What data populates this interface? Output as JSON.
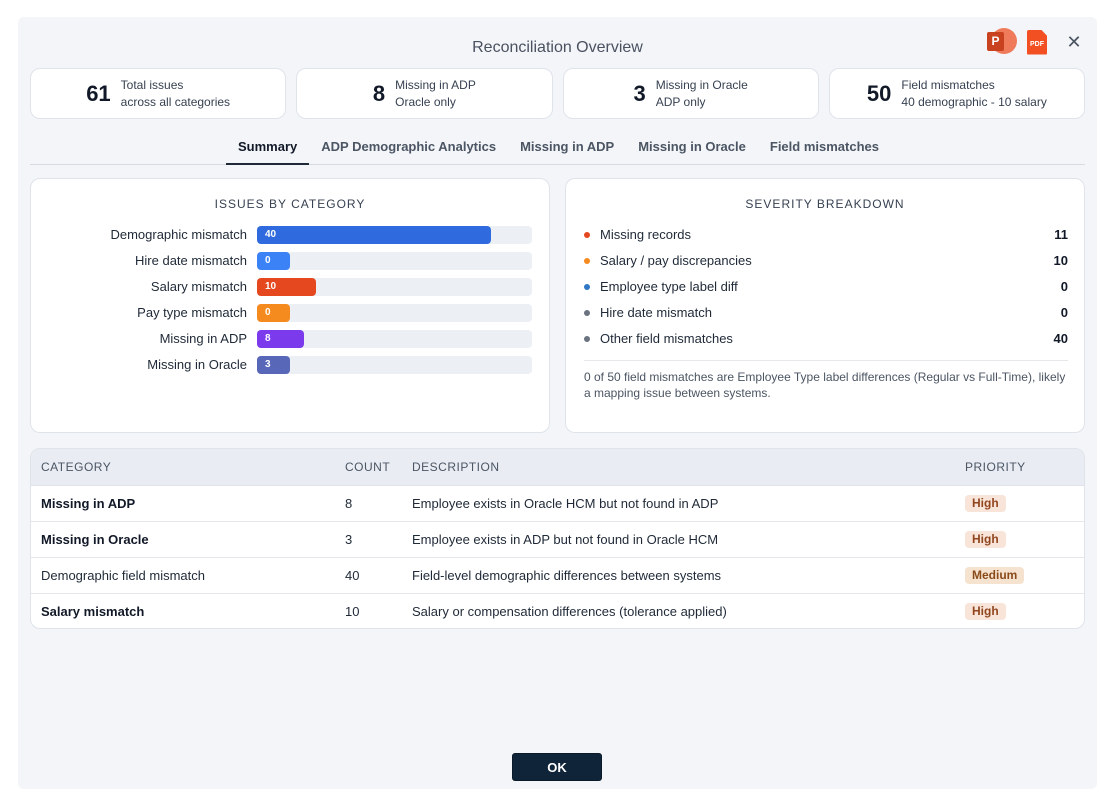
{
  "dialog": {
    "title": "Reconciliation Overview",
    "export_ppt_icon": "P",
    "export_pdf_icon": "PDF",
    "close_icon": "✕",
    "ok_label": "OK"
  },
  "stats": [
    {
      "value": "61",
      "line1": "Total issues",
      "line2": "across all categories"
    },
    {
      "value": "8",
      "line1": "Missing in ADP",
      "line2": "Oracle only"
    },
    {
      "value": "3",
      "line1": "Missing in Oracle",
      "line2": "ADP only"
    },
    {
      "value": "50",
      "line1": "Field mismatches",
      "line2": "40 demographic - 10 salary"
    }
  ],
  "tabs": [
    "Summary",
    "ADP Demographic Analytics",
    "Missing in ADP",
    "Missing in Oracle",
    "Field mismatches"
  ],
  "issues_by_category": {
    "title": "ISSUES BY CATEGORY",
    "rows": [
      {
        "label": "Demographic mismatch",
        "value": 40,
        "color": "#2f6bde"
      },
      {
        "label": "Hire date mismatch",
        "value": 0,
        "color": "#3b82f6"
      },
      {
        "label": "Salary mismatch",
        "value": 10,
        "color": "#e5481f"
      },
      {
        "label": "Pay type mismatch",
        "value": 0,
        "color": "#f58a1f"
      },
      {
        "label": "Missing in ADP",
        "value": 8,
        "color": "#7c3aed"
      },
      {
        "label": "Missing in Oracle",
        "value": 3,
        "color": "#5867b8"
      }
    ],
    "max": 47
  },
  "severity": {
    "title": "SEVERITY BREAKDOWN",
    "rows": [
      {
        "label": "Missing records",
        "value": "11",
        "color": "#e5481f"
      },
      {
        "label": "Salary / pay discrepancies",
        "value": "10",
        "color": "#f58a1f"
      },
      {
        "label": "Employee type label diff",
        "value": "0",
        "color": "#2f78c4"
      },
      {
        "label": "Hire date mismatch",
        "value": "0",
        "color": "#6b7280"
      },
      {
        "label": "Other field mismatches",
        "value": "40",
        "color": "#6b7280"
      }
    ],
    "note": "0 of 50 field mismatches are Employee Type label differences (Regular vs Full-Time), likely a mapping issue between systems."
  },
  "table": {
    "headers": {
      "category": "CATEGORY",
      "count": "COUNT",
      "description": "DESCRIPTION",
      "priority": "PRIORITY"
    },
    "rows": [
      {
        "category": "Missing in ADP",
        "count": "8",
        "description": "Employee exists in Oracle HCM but not found in ADP",
        "priority": "High",
        "bold": true
      },
      {
        "category": "Missing in Oracle",
        "count": "3",
        "description": "Employee exists in ADP but not found in Oracle HCM",
        "priority": "High",
        "bold": true
      },
      {
        "category": "Demographic field mismatch",
        "count": "40",
        "description": "Field-level demographic differences between systems",
        "priority": "Medium",
        "bold": false
      },
      {
        "category": "Salary mismatch",
        "count": "10",
        "description": "Salary or compensation differences (tolerance applied)",
        "priority": "High",
        "bold": true
      }
    ]
  }
}
